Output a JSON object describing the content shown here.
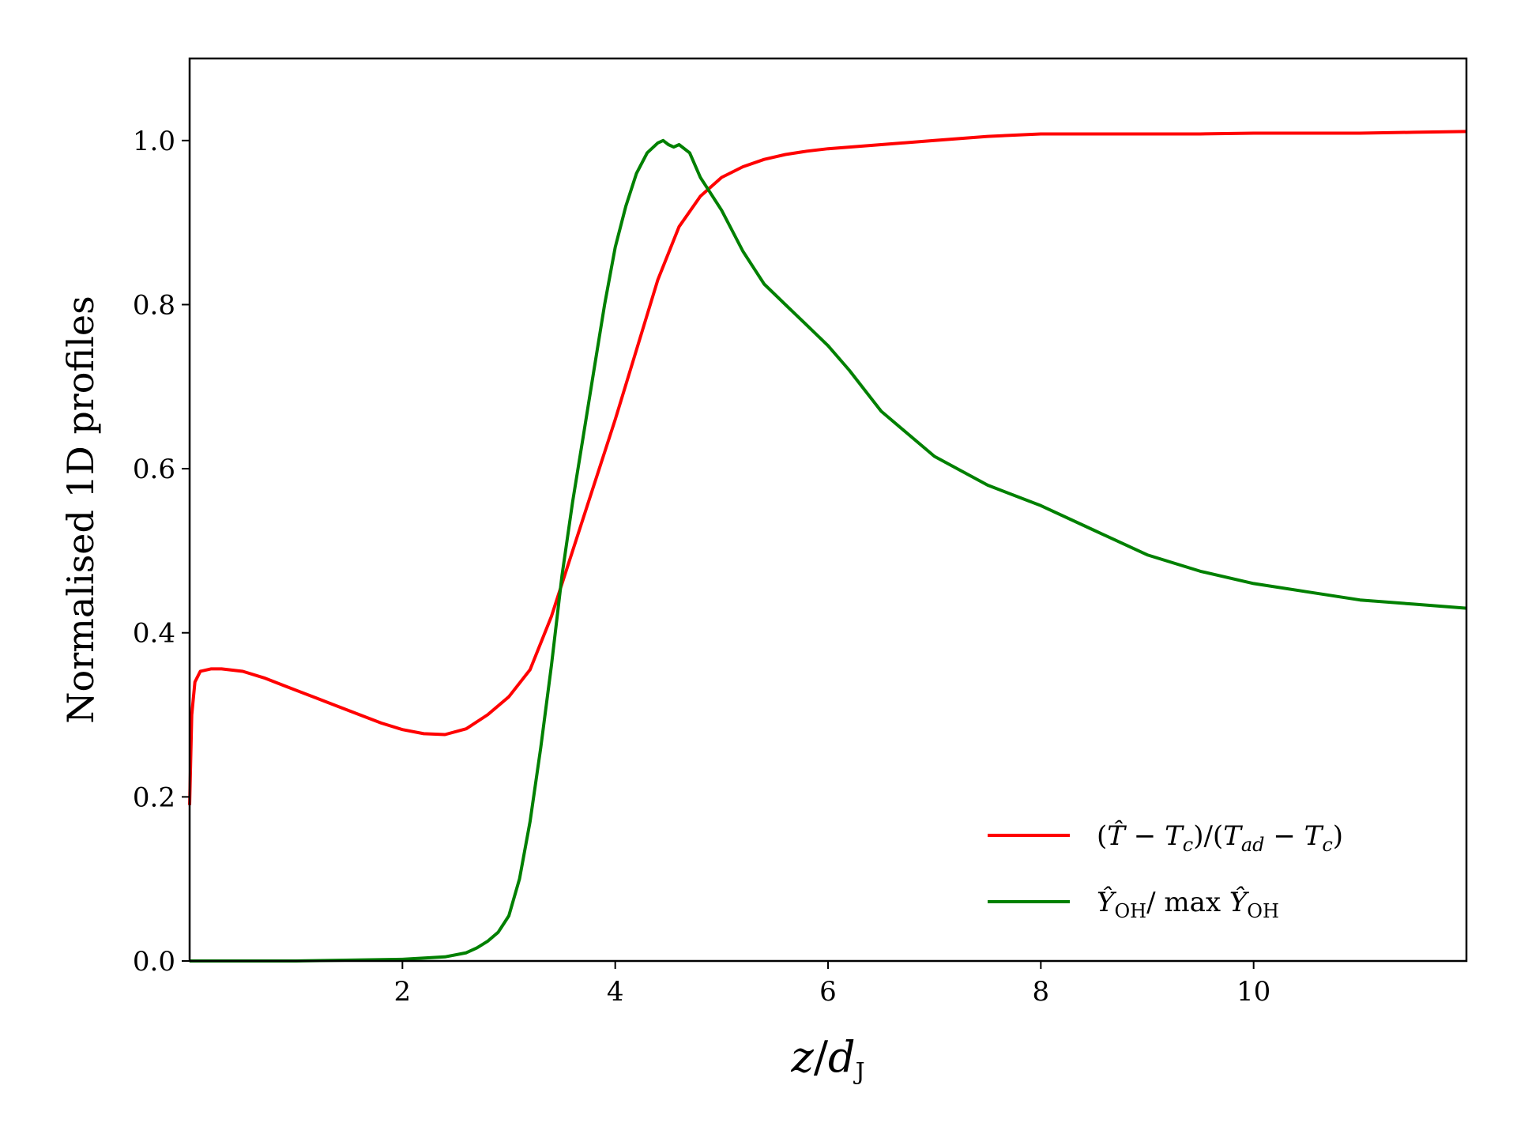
{
  "chart_data": {
    "type": "line",
    "xlabel": "z/d_J",
    "ylabel": "Normalised 1D profiles",
    "xlim": [
      0,
      12
    ],
    "ylim": [
      0,
      1.1
    ],
    "xticks": [
      2,
      4,
      6,
      8,
      10
    ],
    "xtick_labels": [
      "2",
      "4",
      "6",
      "8",
      "10"
    ],
    "yticks": [
      0,
      0.2,
      0.4,
      0.6,
      0.8,
      1.0
    ],
    "ytick_labels": [
      "0.0",
      "0.2",
      "0.4",
      "0.6",
      "0.8",
      "1.0"
    ],
    "grid": false,
    "legend_position": "lower-right",
    "series": [
      {
        "name": "(T̂ − T_c)/(T_ad − T_c)",
        "color": "#ff0000",
        "x": [
          0.0,
          0.02,
          0.05,
          0.1,
          0.2,
          0.3,
          0.5,
          0.7,
          0.9,
          1.2,
          1.5,
          1.8,
          2.0,
          2.2,
          2.4,
          2.6,
          2.8,
          3.0,
          3.2,
          3.4,
          3.6,
          3.8,
          4.0,
          4.2,
          4.4,
          4.6,
          4.8,
          5.0,
          5.2,
          5.4,
          5.6,
          5.8,
          6.0,
          6.5,
          7.0,
          7.5,
          8.0,
          8.5,
          9.0,
          9.5,
          10.0,
          10.5,
          11.0,
          11.5,
          12.0
        ],
        "values": [
          0.19,
          0.3,
          0.34,
          0.353,
          0.356,
          0.356,
          0.353,
          0.345,
          0.335,
          0.32,
          0.305,
          0.29,
          0.282,
          0.277,
          0.276,
          0.283,
          0.3,
          0.322,
          0.355,
          0.42,
          0.5,
          0.58,
          0.66,
          0.745,
          0.83,
          0.895,
          0.932,
          0.955,
          0.968,
          0.977,
          0.983,
          0.987,
          0.99,
          0.995,
          1.0,
          1.005,
          1.008,
          1.008,
          1.008,
          1.008,
          1.009,
          1.009,
          1.009,
          1.01,
          1.011
        ]
      },
      {
        "name": "Ŷ_OH/max Ŷ_OH",
        "color": "#008000",
        "x": [
          0.0,
          1.0,
          2.0,
          2.4,
          2.6,
          2.7,
          2.8,
          2.9,
          3.0,
          3.1,
          3.2,
          3.3,
          3.4,
          3.5,
          3.6,
          3.7,
          3.8,
          3.9,
          4.0,
          4.1,
          4.2,
          4.3,
          4.4,
          4.45,
          4.5,
          4.55,
          4.6,
          4.7,
          4.8,
          4.9,
          5.0,
          5.1,
          5.2,
          5.3,
          5.4,
          5.6,
          5.8,
          6.0,
          6.2,
          6.5,
          7.0,
          7.5,
          8.0,
          8.5,
          9.0,
          9.5,
          10.0,
          10.5,
          11.0,
          11.5,
          12.0
        ],
        "values": [
          0.0,
          0.0,
          0.002,
          0.005,
          0.01,
          0.016,
          0.024,
          0.035,
          0.055,
          0.1,
          0.17,
          0.26,
          0.36,
          0.47,
          0.56,
          0.64,
          0.72,
          0.8,
          0.87,
          0.92,
          0.96,
          0.985,
          0.997,
          1.0,
          0.995,
          0.992,
          0.995,
          0.985,
          0.955,
          0.935,
          0.915,
          0.89,
          0.865,
          0.845,
          0.825,
          0.8,
          0.775,
          0.75,
          0.72,
          0.67,
          0.615,
          0.58,
          0.555,
          0.525,
          0.495,
          0.475,
          0.46,
          0.45,
          0.44,
          0.435,
          0.43
        ]
      }
    ]
  }
}
